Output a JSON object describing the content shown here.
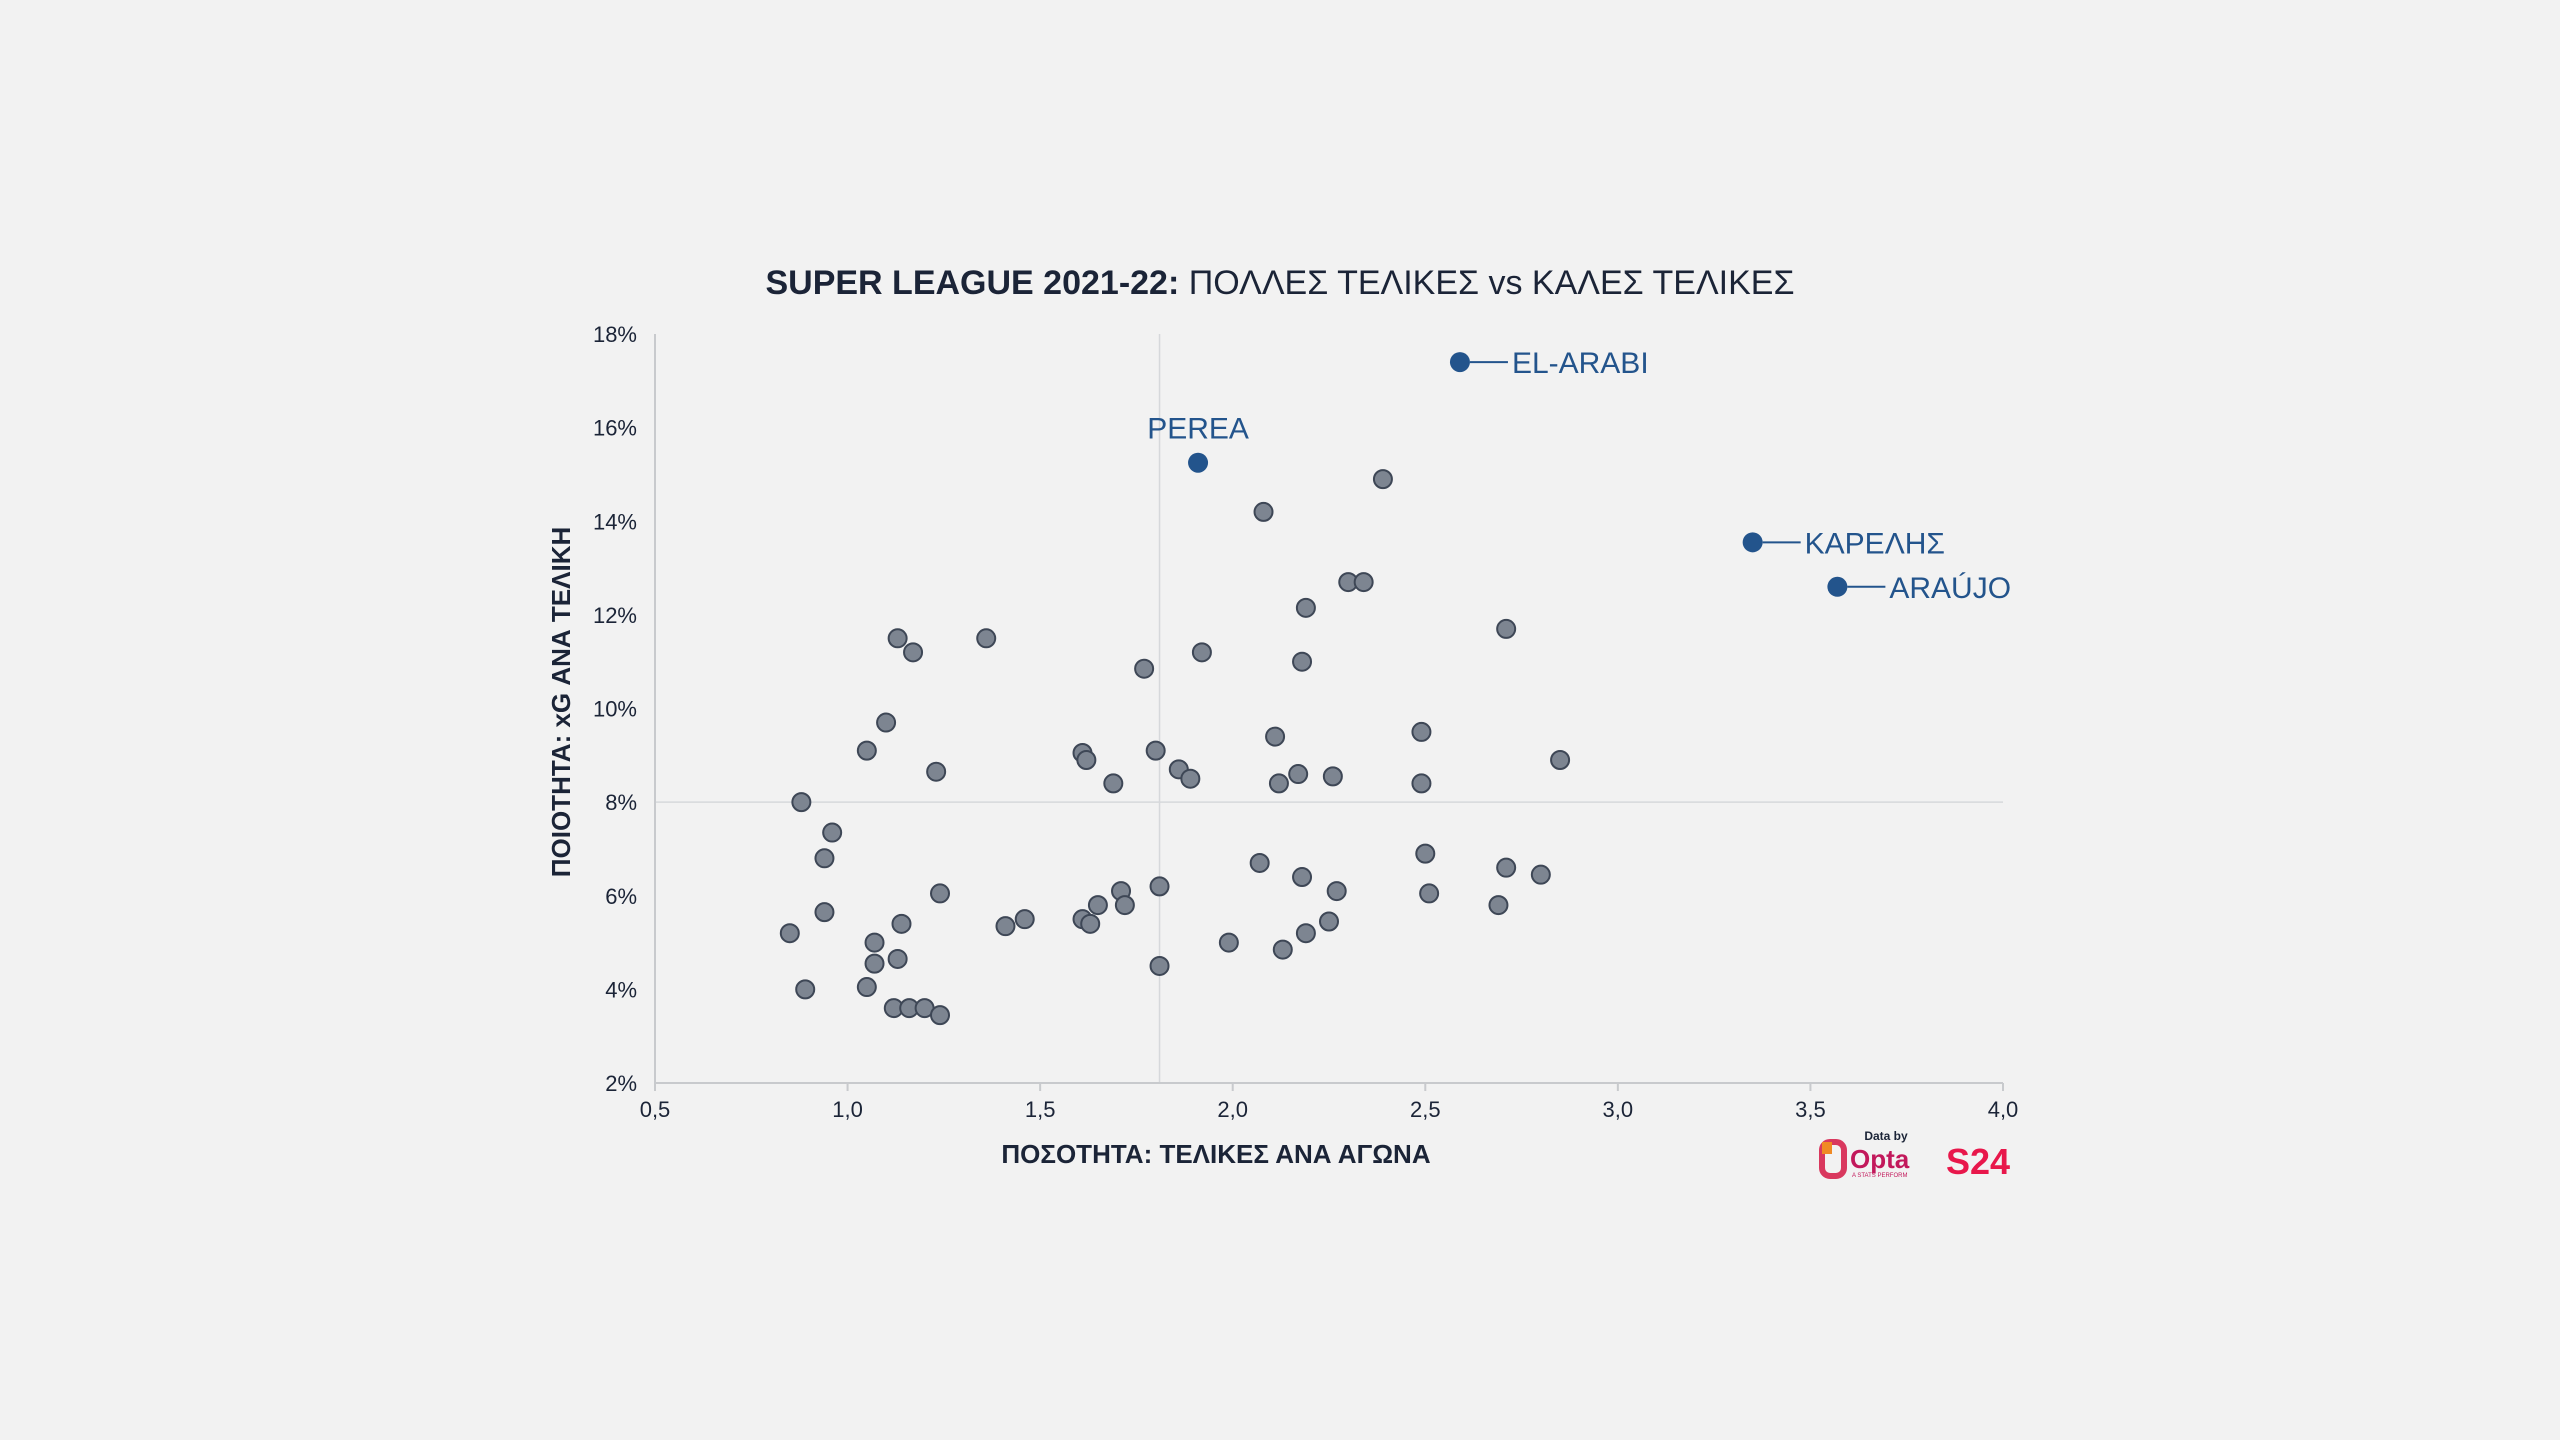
{
  "chart_data": {
    "type": "scatter",
    "title_bold": "SUPER LEAGUE 2021-22:",
    "title_rest": " ΠΟΛΛΕΣ ΤΕΛΙΚΕΣ vs ΚΑΛΕΣ ΤΕΛΙΚΕΣ",
    "xlabel": "ΠΟΣΟΤΗΤΑ: ΤΕΛΙΚΕΣ ΑΝΑ ΑΓΩΝΑ",
    "ylabel": "ΠΟΙΟΤΗΤΑ: xG ΑΝΑ ΤΕΛΙΚΗ",
    "xlim": [
      0.5,
      4.0
    ],
    "ylim": [
      2,
      18
    ],
    "x_ticks": [
      0.5,
      1.0,
      1.5,
      2.0,
      2.5,
      3.0,
      3.5,
      4.0
    ],
    "x_tick_labels": [
      "0,5",
      "1,0",
      "1,5",
      "2,0",
      "2,5",
      "3,0",
      "3,5",
      "4,0"
    ],
    "y_ticks": [
      2,
      4,
      6,
      8,
      10,
      12,
      14,
      16,
      18
    ],
    "y_tick_labels": [
      "2%",
      "4%",
      "6%",
      "8%",
      "10%",
      "12%",
      "14%",
      "16%",
      "18%"
    ],
    "reference_lines": {
      "x": 1.81,
      "y": 8.0
    },
    "colors": {
      "point": "#7d8591",
      "point_stroke": "#3e4756",
      "highlight": "#23548c",
      "axis": "#c8cacd",
      "text": "#1b2437"
    },
    "points": [
      [
        0.85,
        5.2
      ],
      [
        0.88,
        8.0
      ],
      [
        0.89,
        4.0
      ],
      [
        0.94,
        5.65
      ],
      [
        0.94,
        6.8
      ],
      [
        0.96,
        7.35
      ],
      [
        1.05,
        9.1
      ],
      [
        1.05,
        4.05
      ],
      [
        1.07,
        4.55
      ],
      [
        1.07,
        5.0
      ],
      [
        1.1,
        9.7
      ],
      [
        1.12,
        3.6
      ],
      [
        1.13,
        11.5
      ],
      [
        1.13,
        4.65
      ],
      [
        1.14,
        5.4
      ],
      [
        1.16,
        3.6
      ],
      [
        1.17,
        11.2
      ],
      [
        1.2,
        3.6
      ],
      [
        1.23,
        8.65
      ],
      [
        1.24,
        3.45
      ],
      [
        1.24,
        6.05
      ],
      [
        1.36,
        11.5
      ],
      [
        1.41,
        5.35
      ],
      [
        1.46,
        5.5
      ],
      [
        1.61,
        9.05
      ],
      [
        1.61,
        5.5
      ],
      [
        1.62,
        8.9
      ],
      [
        1.63,
        5.4
      ],
      [
        1.65,
        5.8
      ],
      [
        1.69,
        8.4
      ],
      [
        1.71,
        6.1
      ],
      [
        1.72,
        5.8
      ],
      [
        1.77,
        10.85
      ],
      [
        1.8,
        9.1
      ],
      [
        1.81,
        6.2
      ],
      [
        1.81,
        4.5
      ],
      [
        1.86,
        8.7
      ],
      [
        1.89,
        8.5
      ],
      [
        1.92,
        11.2
      ],
      [
        1.99,
        5.0
      ],
      [
        2.07,
        6.7
      ],
      [
        2.08,
        14.2
      ],
      [
        2.11,
        9.4
      ],
      [
        2.12,
        8.4
      ],
      [
        2.13,
        4.85
      ],
      [
        2.17,
        8.6
      ],
      [
        2.18,
        11.0
      ],
      [
        2.18,
        6.4
      ],
      [
        2.19,
        5.2
      ],
      [
        2.19,
        12.15
      ],
      [
        2.25,
        5.45
      ],
      [
        2.26,
        8.55
      ],
      [
        2.27,
        6.1
      ],
      [
        2.3,
        12.7
      ],
      [
        2.34,
        12.7
      ],
      [
        2.39,
        14.9
      ],
      [
        2.49,
        9.5
      ],
      [
        2.49,
        8.4
      ],
      [
        2.5,
        6.9
      ],
      [
        2.51,
        6.05
      ],
      [
        2.69,
        5.8
      ],
      [
        2.71,
        11.7
      ],
      [
        2.71,
        6.6
      ],
      [
        2.8,
        6.45
      ],
      [
        2.85,
        8.9
      ]
    ],
    "highlighted": [
      {
        "label": "EL-ARABI",
        "x": 2.59,
        "y": 17.4
      },
      {
        "label": "PEREA",
        "x": 1.91,
        "y": 15.25
      },
      {
        "label": "ΚΑΡΕΛΗΣ",
        "x": 3.35,
        "y": 13.55
      },
      {
        "label": "ARAÚJO",
        "x": 3.57,
        "y": 12.6
      }
    ]
  },
  "branding": {
    "data_by": "Data by",
    "opta_label": "Opta",
    "opta_sub": "A STATS PERFORM",
    "s24_label": "S24"
  }
}
